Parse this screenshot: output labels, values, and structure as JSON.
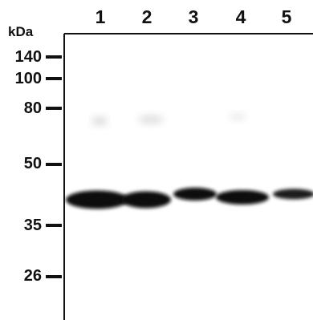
{
  "blot": {
    "unit_label": "kDa",
    "lanes": [
      "1",
      "2",
      "3",
      "4",
      "5"
    ],
    "markers": [
      "140",
      "100",
      "80",
      "50",
      "35",
      "26"
    ],
    "band_color": "#0d0d0d",
    "background_color": "#ffffff"
  }
}
